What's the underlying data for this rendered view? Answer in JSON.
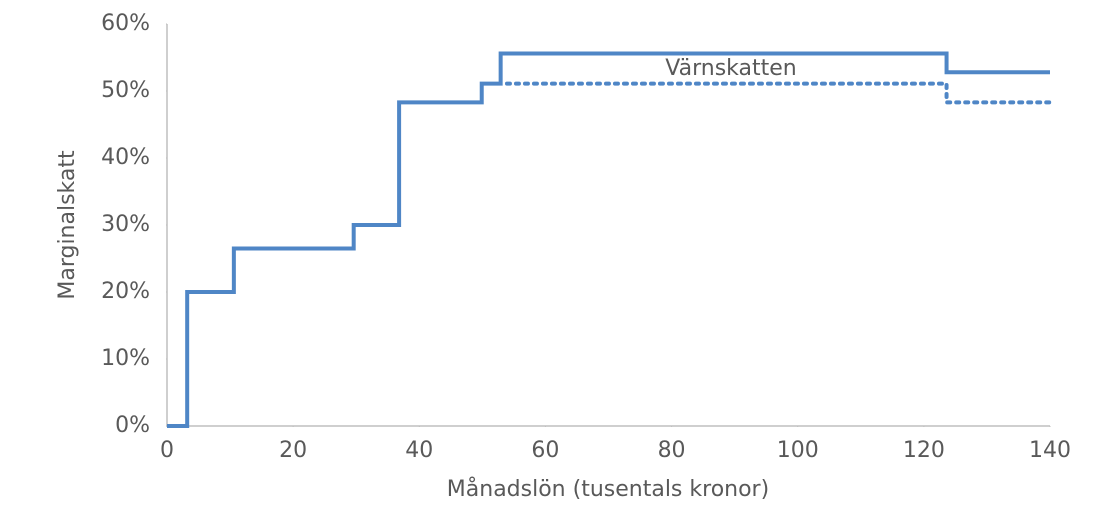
{
  "chart_data": {
    "type": "line",
    "xlabel": "Månadslön (tusentals kronor)",
    "ylabel": "Marginalskatt",
    "annotations": [
      "Värnskatten"
    ],
    "xlim": [
      0,
      140
    ],
    "xticks": [
      0,
      20,
      40,
      60,
      80,
      100,
      120,
      140
    ],
    "ylim": [
      0,
      60
    ],
    "yticks": [
      {
        "value": 0,
        "label": "0%"
      },
      {
        "value": 10,
        "label": "10%"
      },
      {
        "value": 20,
        "label": "20%"
      },
      {
        "value": 30,
        "label": "30%"
      },
      {
        "value": 40,
        "label": "40%"
      },
      {
        "value": 50,
        "label": "50%"
      },
      {
        "value": 60,
        "label": "60%"
      }
    ],
    "grid": false,
    "series": [
      {
        "color": "#4f86c6",
        "style": "solid",
        "x": [
          0,
          3.2,
          3.2,
          10.6,
          10.6,
          29.6,
          29.6,
          36.8,
          36.8,
          49.9,
          49.9,
          52.9,
          52.9,
          123.6,
          123.6,
          140
        ],
        "values": [
          0,
          0,
          20,
          20,
          26.5,
          26.5,
          30,
          30,
          48.3,
          48.3,
          51.1,
          51.1,
          55.6,
          55.6,
          52.8,
          52.8
        ]
      },
      {
        "color": "#4f86c6",
        "style": "dotted",
        "x": [
          53.9,
          123.6,
          123.6,
          140
        ],
        "values": [
          51.1,
          51.1,
          48.3,
          48.3
        ]
      }
    ]
  }
}
